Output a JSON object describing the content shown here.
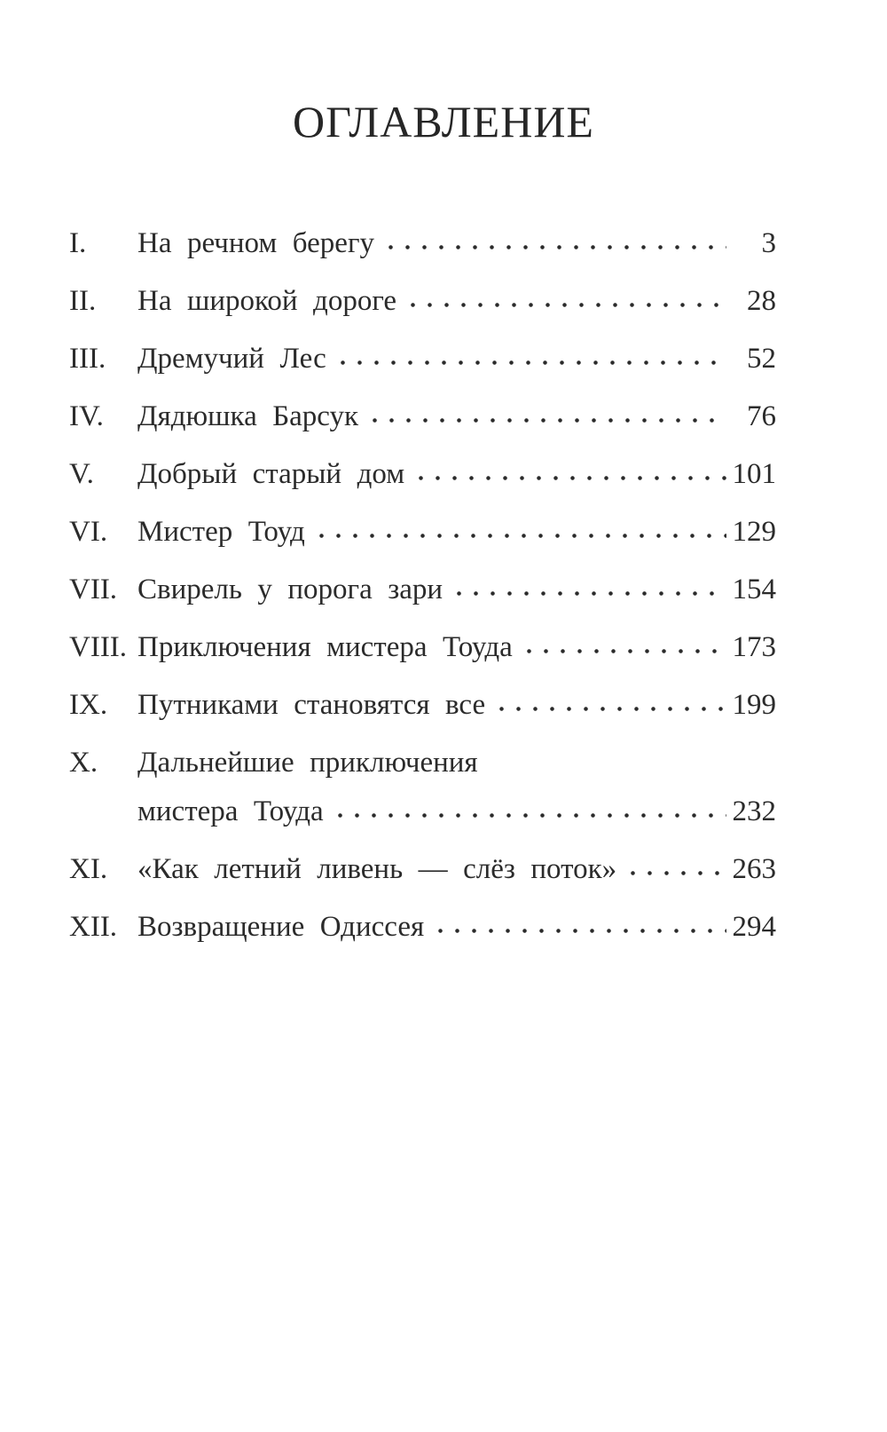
{
  "page": {
    "title": "ОГЛАВЛЕНИЕ",
    "entries": [
      {
        "num": "I.",
        "title": "На речном берегу",
        "page": "3"
      },
      {
        "num": "II.",
        "title": "На широкой дороге",
        "page": "28"
      },
      {
        "num": "III.",
        "title": "Дремучий Лес",
        "page": "52"
      },
      {
        "num": "IV.",
        "title": "Дядюшка Барсук",
        "page": "76"
      },
      {
        "num": "V.",
        "title": "Добрый старый дом",
        "page": "101"
      },
      {
        "num": "VI.",
        "title": "Мистер Тоуд",
        "page": "129"
      },
      {
        "num": "VII.",
        "title": "Свирель у порога зари",
        "page": "154"
      },
      {
        "num": "VIII.",
        "title": "Приключения мистера Тоуда",
        "page": "173"
      },
      {
        "num": "IX.",
        "title": "Путниками становятся все",
        "page": "199"
      },
      {
        "num": "X.",
        "title": "Дальнейшие приключения",
        "title_line2": "мистера Тоуда",
        "page": "232"
      },
      {
        "num": "XI.",
        "title": "«Как летний ливень — слёз поток»",
        "page": "263"
      },
      {
        "num": "XII.",
        "title": "Возвращение Одиссея",
        "page": "294"
      }
    ],
    "ink_color": "#2b2b2b",
    "background_color": "#ffffff"
  }
}
